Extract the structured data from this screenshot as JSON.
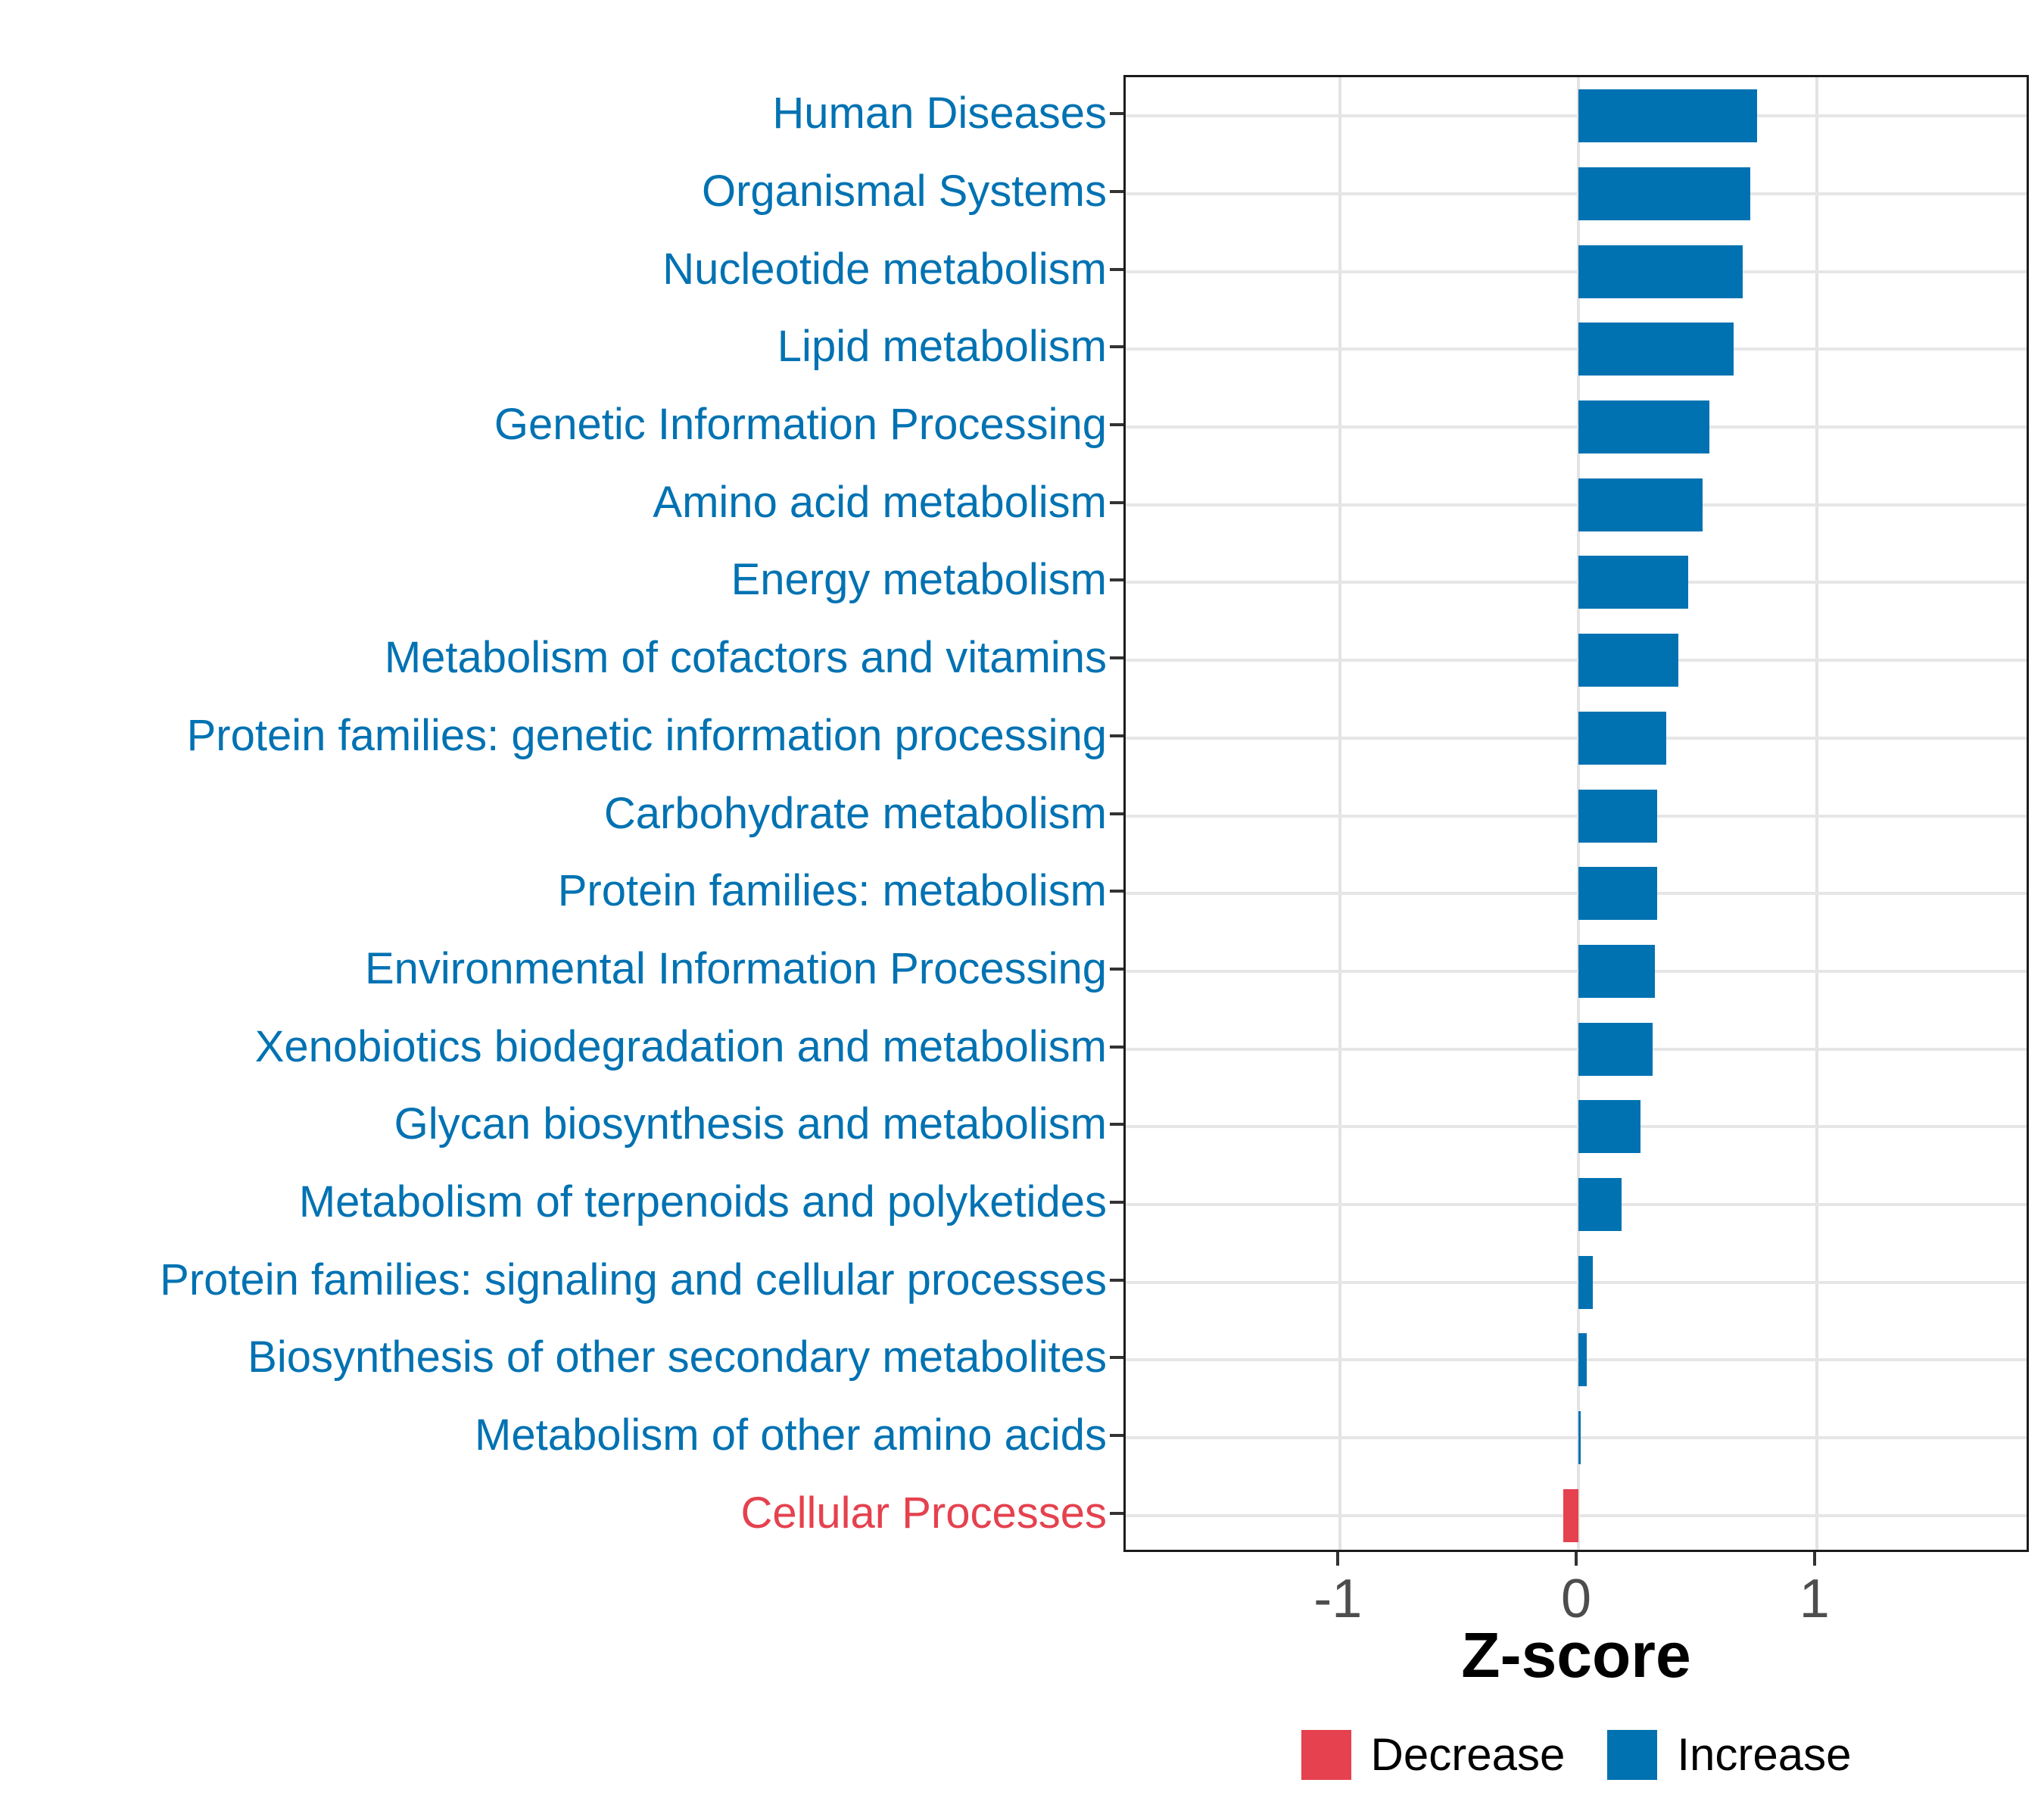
{
  "chart_data": {
    "type": "bar",
    "orientation": "horizontal",
    "title": "",
    "xlabel": "Z-score",
    "ylabel": "",
    "xlim": [
      -1.9,
      1.9
    ],
    "x_ticks": [
      -1,
      0,
      1
    ],
    "x_tick_labels": [
      "-1",
      "0",
      "1"
    ],
    "grid": "major-only",
    "legend_position": "bottom-center",
    "categories": [
      "Human Diseases",
      "Organismal Systems",
      "Nucleotide metabolism",
      "Lipid metabolism",
      "Genetic Information Processing",
      "Amino acid metabolism",
      "Energy metabolism",
      "Metabolism of cofactors and vitamins",
      "Protein families: genetic information processing",
      "Carbohydrate metabolism",
      "Protein families: metabolism",
      "Environmental Information Processing",
      "Xenobiotics biodegradation and metabolism",
      "Glycan biosynthesis and metabolism",
      "Metabolism of terpenoids and polyketides",
      "Protein families: signaling and cellular processes",
      "Biosynthesis of other secondary metabolites",
      "Metabolism of other amino acids",
      "Cellular Processes"
    ],
    "values": [
      0.75,
      0.72,
      0.69,
      0.65,
      0.55,
      0.52,
      0.46,
      0.42,
      0.37,
      0.33,
      0.33,
      0.32,
      0.31,
      0.26,
      0.18,
      0.06,
      0.035,
      0.01,
      -0.065
    ],
    "directions": [
      "Increase",
      "Increase",
      "Increase",
      "Increase",
      "Increase",
      "Increase",
      "Increase",
      "Increase",
      "Increase",
      "Increase",
      "Increase",
      "Increase",
      "Increase",
      "Increase",
      "Increase",
      "Increase",
      "Increase",
      "Increase",
      "Decrease"
    ],
    "colors": {
      "Increase": "#0072B2",
      "Decrease": "#E5414E"
    }
  },
  "legend": {
    "items": [
      {
        "label": "Decrease",
        "key": "Decrease"
      },
      {
        "label": "Increase",
        "key": "Increase"
      }
    ]
  },
  "axis": {
    "xlabel": "Z-score"
  }
}
